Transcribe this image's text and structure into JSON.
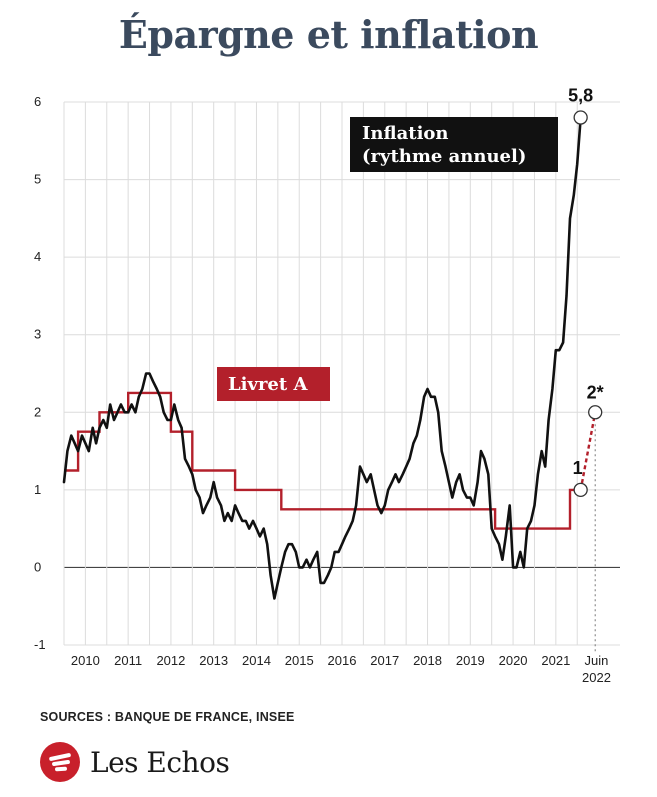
{
  "title": "Épargne et inflation",
  "sources": "SOURCES : BANQUE DE FRANCE, INSEE",
  "brand": "Les Echos",
  "colors": {
    "inflation": "#111111",
    "livret": "#b3202b",
    "title": "#3b4a5e",
    "logo": "#c8202b"
  },
  "chart_data": {
    "type": "line",
    "title": "Épargne et inflation",
    "xlabel": "",
    "ylabel": "",
    "ylim": [
      -1,
      6
    ],
    "xlim": [
      2009.5,
      2022.5
    ],
    "yticks": [
      "-1",
      "0",
      "1",
      "2",
      "3",
      "4",
      "5",
      "6"
    ],
    "xticks": [
      "2010",
      "2011",
      "2012",
      "2013",
      "2014",
      "2015",
      "2016",
      "2017",
      "2018",
      "2019",
      "2020",
      "2021"
    ],
    "xtick_last": {
      "line1": "Juin",
      "line2": "2022"
    },
    "grid": true,
    "annotations": {
      "inflation_box": [
        "Inflation",
        "(rythme annuel)"
      ],
      "livret_box": "Livret A",
      "inflation_end": "5,8",
      "livret_current": "1",
      "livret_next": "2*"
    },
    "series": [
      {
        "name": "Inflation (rythme annuel)",
        "color": "#111111",
        "points": [
          [
            2009.5,
            1.1
          ],
          [
            2009.58,
            1.5
          ],
          [
            2009.67,
            1.7
          ],
          [
            2009.75,
            1.6
          ],
          [
            2009.83,
            1.5
          ],
          [
            2009.92,
            1.7
          ],
          [
            2010.0,
            1.6
          ],
          [
            2010.08,
            1.5
          ],
          [
            2010.17,
            1.8
          ],
          [
            2010.25,
            1.6
          ],
          [
            2010.33,
            1.8
          ],
          [
            2010.42,
            1.9
          ],
          [
            2010.5,
            1.8
          ],
          [
            2010.58,
            2.1
          ],
          [
            2010.67,
            1.9
          ],
          [
            2010.75,
            2.0
          ],
          [
            2010.83,
            2.1
          ],
          [
            2010.92,
            2.0
          ],
          [
            2011.0,
            2.0
          ],
          [
            2011.08,
            2.1
          ],
          [
            2011.17,
            2.0
          ],
          [
            2011.25,
            2.2
          ],
          [
            2011.33,
            2.3
          ],
          [
            2011.42,
            2.5
          ],
          [
            2011.5,
            2.5
          ],
          [
            2011.58,
            2.4
          ],
          [
            2011.67,
            2.3
          ],
          [
            2011.75,
            2.2
          ],
          [
            2011.83,
            2.0
          ],
          [
            2011.92,
            1.9
          ],
          [
            2012.0,
            1.9
          ],
          [
            2012.08,
            2.1
          ],
          [
            2012.17,
            1.9
          ],
          [
            2012.25,
            1.8
          ],
          [
            2012.33,
            1.4
          ],
          [
            2012.42,
            1.3
          ],
          [
            2012.5,
            1.2
          ],
          [
            2012.58,
            1.0
          ],
          [
            2012.67,
            0.9
          ],
          [
            2012.75,
            0.7
          ],
          [
            2012.83,
            0.8
          ],
          [
            2012.92,
            0.9
          ],
          [
            2013.0,
            1.1
          ],
          [
            2013.08,
            0.9
          ],
          [
            2013.17,
            0.8
          ],
          [
            2013.25,
            0.6
          ],
          [
            2013.33,
            0.7
          ],
          [
            2013.42,
            0.6
          ],
          [
            2013.5,
            0.8
          ],
          [
            2013.58,
            0.7
          ],
          [
            2013.67,
            0.6
          ],
          [
            2013.75,
            0.6
          ],
          [
            2013.83,
            0.5
          ],
          [
            2013.92,
            0.6
          ],
          [
            2014.0,
            0.5
          ],
          [
            2014.08,
            0.4
          ],
          [
            2014.17,
            0.5
          ],
          [
            2014.25,
            0.3
          ],
          [
            2014.33,
            -0.1
          ],
          [
            2014.42,
            -0.4
          ],
          [
            2014.5,
            -0.2
          ],
          [
            2014.58,
            0.0
          ],
          [
            2014.67,
            0.2
          ],
          [
            2014.75,
            0.3
          ],
          [
            2014.83,
            0.3
          ],
          [
            2014.92,
            0.2
          ],
          [
            2015.0,
            0.0
          ],
          [
            2015.08,
            0.0
          ],
          [
            2015.17,
            0.1
          ],
          [
            2015.25,
            0.0
          ],
          [
            2015.33,
            0.1
          ],
          [
            2015.42,
            0.2
          ],
          [
            2015.5,
            -0.2
          ],
          [
            2015.58,
            -0.2
          ],
          [
            2015.67,
            -0.1
          ],
          [
            2015.75,
            0.0
          ],
          [
            2015.83,
            0.2
          ],
          [
            2015.92,
            0.2
          ],
          [
            2016.0,
            0.3
          ],
          [
            2016.08,
            0.4
          ],
          [
            2016.17,
            0.5
          ],
          [
            2016.25,
            0.6
          ],
          [
            2016.33,
            0.8
          ],
          [
            2016.42,
            1.3
          ],
          [
            2016.5,
            1.2
          ],
          [
            2016.58,
            1.1
          ],
          [
            2016.67,
            1.2
          ],
          [
            2016.75,
            1.0
          ],
          [
            2016.83,
            0.8
          ],
          [
            2016.92,
            0.7
          ],
          [
            2017.0,
            0.8
          ],
          [
            2017.08,
            1.0
          ],
          [
            2017.17,
            1.1
          ],
          [
            2017.25,
            1.2
          ],
          [
            2017.33,
            1.1
          ],
          [
            2017.42,
            1.2
          ],
          [
            2017.5,
            1.3
          ],
          [
            2017.58,
            1.4
          ],
          [
            2017.67,
            1.6
          ],
          [
            2017.75,
            1.7
          ],
          [
            2017.83,
            1.9
          ],
          [
            2017.92,
            2.2
          ],
          [
            2018.0,
            2.3
          ],
          [
            2018.08,
            2.2
          ],
          [
            2018.17,
            2.2
          ],
          [
            2018.25,
            2.0
          ],
          [
            2018.33,
            1.5
          ],
          [
            2018.42,
            1.3
          ],
          [
            2018.5,
            1.1
          ],
          [
            2018.58,
            0.9
          ],
          [
            2018.67,
            1.1
          ],
          [
            2018.75,
            1.2
          ],
          [
            2018.83,
            1.0
          ],
          [
            2018.92,
            0.9
          ],
          [
            2019.0,
            0.9
          ],
          [
            2019.08,
            0.8
          ],
          [
            2019.17,
            1.1
          ],
          [
            2019.25,
            1.5
          ],
          [
            2019.33,
            1.4
          ],
          [
            2019.42,
            1.2
          ],
          [
            2019.5,
            0.5
          ],
          [
            2019.58,
            0.4
          ],
          [
            2019.67,
            0.3
          ],
          [
            2019.75,
            0.1
          ],
          [
            2019.83,
            0.4
          ],
          [
            2019.92,
            0.8
          ],
          [
            2020.0,
            0.0
          ],
          [
            2020.08,
            0.0
          ],
          [
            2020.17,
            0.2
          ],
          [
            2020.25,
            0.0
          ],
          [
            2020.33,
            0.5
          ],
          [
            2020.42,
            0.6
          ],
          [
            2020.5,
            0.8
          ],
          [
            2020.58,
            1.2
          ],
          [
            2020.67,
            1.5
          ],
          [
            2020.75,
            1.3
          ],
          [
            2020.83,
            1.9
          ],
          [
            2020.92,
            2.3
          ],
          [
            2021.0,
            2.8
          ],
          [
            2021.08,
            2.8
          ],
          [
            2021.17,
            2.9
          ],
          [
            2021.25,
            3.5
          ],
          [
            2021.33,
            4.5
          ],
          [
            2021.42,
            4.8
          ],
          [
            2021.5,
            5.2
          ],
          [
            2021.58,
            5.8
          ]
        ]
      },
      {
        "name": "Livret A",
        "color": "#b3202b",
        "points": [
          [
            2009.5,
            1.25
          ],
          [
            2009.83,
            1.25
          ],
          [
            2009.83,
            1.75
          ],
          [
            2010.33,
            1.75
          ],
          [
            2010.33,
            2.0
          ],
          [
            2011.0,
            2.0
          ],
          [
            2011.0,
            2.25
          ],
          [
            2012.0,
            2.25
          ],
          [
            2012.0,
            1.75
          ],
          [
            2012.5,
            1.75
          ],
          [
            2012.5,
            1.25
          ],
          [
            2013.5,
            1.25
          ],
          [
            2013.5,
            1.0
          ],
          [
            2014.58,
            1.0
          ],
          [
            2014.58,
            0.75
          ],
          [
            2019.58,
            0.75
          ],
          [
            2019.58,
            0.5
          ],
          [
            2021.33,
            0.5
          ],
          [
            2021.33,
            1.0
          ],
          [
            2021.58,
            1.0
          ]
        ]
      },
      {
        "name": "Livret A (projection)",
        "color": "#b3202b",
        "points": [
          [
            2021.58,
            1.0
          ],
          [
            2021.92,
            2.0
          ]
        ]
      }
    ]
  }
}
